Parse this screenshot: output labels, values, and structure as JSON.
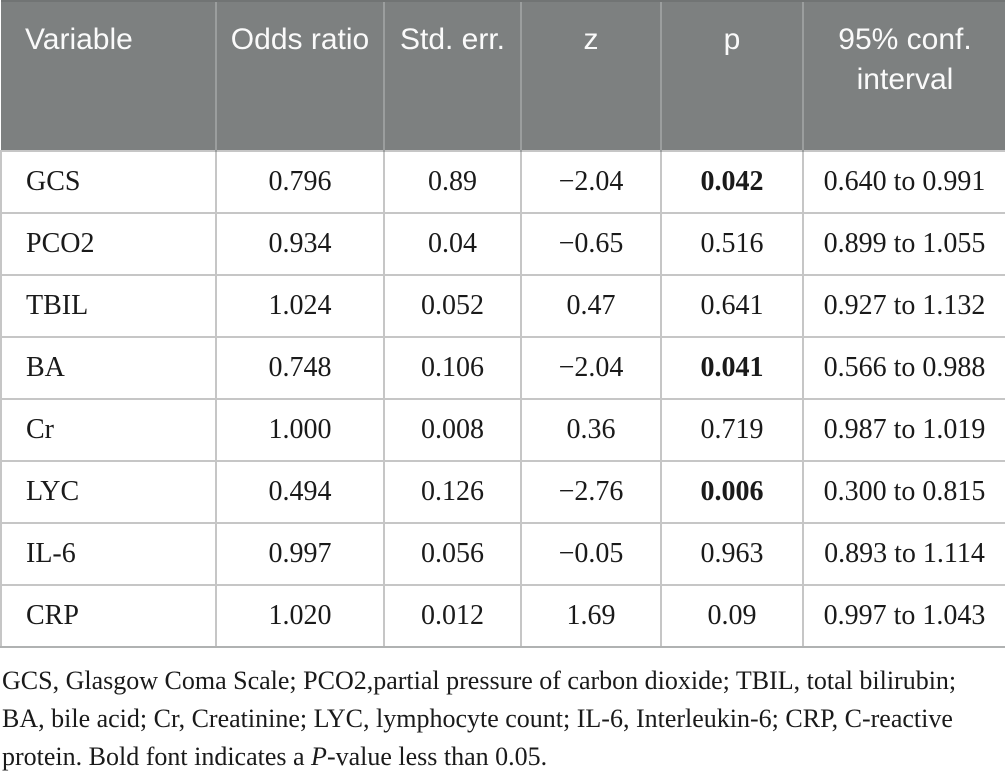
{
  "colors": {
    "header-bg": "#7d8080",
    "header-divider": "#9b9e9e",
    "header-text": "#fafafa",
    "grid": "#c6c6c6",
    "grid-dark": "#b0b2b2",
    "text": "#1a1a1a"
  },
  "table": {
    "columns": [
      {
        "label": "Variable"
      },
      {
        "label": "Odds ratio"
      },
      {
        "label": "Std. err."
      },
      {
        "label": "z"
      },
      {
        "label": "p"
      },
      {
        "label": "95% conf. interval"
      }
    ],
    "rows": [
      {
        "variable": "GCS",
        "odds_ratio": "0.796",
        "std_err": "0.89",
        "z": "−2.04",
        "p": "0.042",
        "p_bold": true,
        "ci": "0.640 to 0.991"
      },
      {
        "variable": "PCO2",
        "odds_ratio": "0.934",
        "std_err": "0.04",
        "z": "−0.65",
        "p": "0.516",
        "p_bold": false,
        "ci": "0.899 to 1.055"
      },
      {
        "variable": "TBIL",
        "odds_ratio": "1.024",
        "std_err": "0.052",
        "z": "0.47",
        "p": "0.641",
        "p_bold": false,
        "ci": "0.927 to 1.132"
      },
      {
        "variable": "BA",
        "odds_ratio": "0.748",
        "std_err": "0.106",
        "z": "−2.04",
        "p": "0.041",
        "p_bold": true,
        "ci": "0.566 to 0.988"
      },
      {
        "variable": "Cr",
        "odds_ratio": "1.000",
        "std_err": "0.008",
        "z": "0.36",
        "p": "0.719",
        "p_bold": false,
        "ci": "0.987 to 1.019"
      },
      {
        "variable": "LYC",
        "odds_ratio": "0.494",
        "std_err": "0.126",
        "z": "−2.76",
        "p": "0.006",
        "p_bold": true,
        "ci": "0.300 to 0.815"
      },
      {
        "variable": "IL-6",
        "odds_ratio": "0.997",
        "std_err": "0.056",
        "z": "−0.05",
        "p": "0.963",
        "p_bold": false,
        "ci": "0.893 to 1.114"
      },
      {
        "variable": "CRP",
        "odds_ratio": "1.020",
        "std_err": "0.012",
        "z": "1.69",
        "p": "0.09",
        "p_bold": false,
        "ci": "0.997 to 1.043"
      }
    ]
  },
  "footnote": {
    "part1": "GCS, Glasgow Coma Scale; PCO2,partial pressure of carbon dioxide; TBIL, total bilirubin; BA, bile acid; Cr, Creatinine; LYC, lymphocyte count; IL-6, Interleukin-6; CRP, C-reactive protein. Bold font indicates a ",
    "italic_p": "P",
    "part2": "-value less than 0.05."
  }
}
